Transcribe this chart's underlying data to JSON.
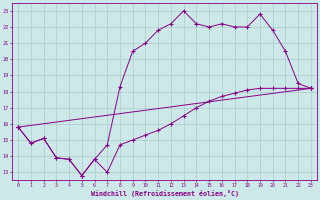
{
  "bg_color": "#cce8e8",
  "line_color": "#880088",
  "grid_color": "#aacccc",
  "xlabel": "Windchill (Refroidissement éolien,°C)",
  "xlim": [
    -0.5,
    23.5
  ],
  "ylim": [
    12.5,
    23.5
  ],
  "xticks": [
    0,
    1,
    2,
    3,
    4,
    5,
    6,
    7,
    8,
    9,
    10,
    11,
    12,
    13,
    14,
    15,
    16,
    17,
    18,
    19,
    20,
    21,
    22,
    23
  ],
  "yticks": [
    13,
    14,
    15,
    16,
    17,
    18,
    19,
    20,
    21,
    22,
    23
  ],
  "line1_x": [
    0,
    1,
    2,
    3,
    4,
    5,
    6,
    7,
    8,
    9,
    10,
    11,
    12,
    13,
    14,
    15,
    16,
    17,
    18,
    19,
    20,
    21,
    22,
    23
  ],
  "line1_y": [
    15.8,
    14.8,
    15.1,
    13.9,
    13.8,
    12.8,
    13.8,
    13.0,
    14.7,
    15.0,
    15.3,
    15.6,
    16.0,
    16.5,
    17.0,
    17.4,
    17.7,
    17.9,
    18.1,
    18.2,
    18.2,
    18.2,
    18.2,
    18.2
  ],
  "line2_x": [
    0,
    1,
    2,
    3,
    4,
    5,
    6,
    7,
    8,
    9,
    10,
    11,
    12,
    13,
    14,
    15,
    16,
    17,
    18,
    19,
    20,
    21,
    22,
    23
  ],
  "line2_y": [
    15.8,
    14.8,
    15.1,
    13.9,
    13.8,
    12.8,
    13.8,
    14.7,
    18.3,
    20.5,
    21.0,
    21.8,
    22.2,
    23.0,
    22.2,
    22.0,
    22.2,
    22.0,
    22.0,
    22.8,
    21.8,
    20.5,
    18.5,
    18.2
  ],
  "line3_x": [
    0,
    23
  ],
  "line3_y": [
    15.8,
    18.2
  ]
}
